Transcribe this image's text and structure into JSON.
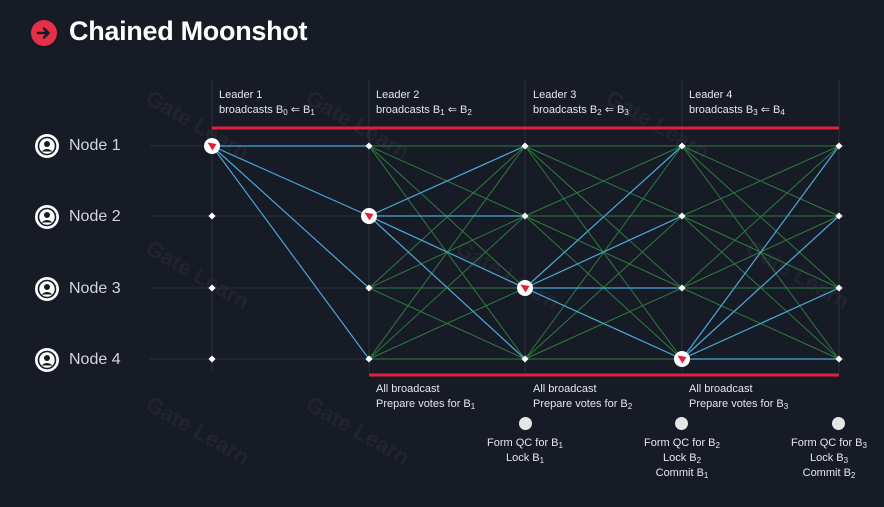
{
  "title": "Chained Moonshot",
  "nodes": [
    {
      "label": "Node 1"
    },
    {
      "label": "Node 2"
    },
    {
      "label": "Node 3"
    },
    {
      "label": "Node 4"
    }
  ],
  "leaders": [
    {
      "line1": "Leader 1",
      "line2_prefix": "broadcasts B",
      "from": "0",
      "arrow": "⇐",
      "to_prefix": "B",
      "to": "1"
    },
    {
      "line1": "Leader 2",
      "line2_prefix": "broadcasts B",
      "from": "1",
      "arrow": "⇐",
      "to_prefix": "B",
      "to": "2"
    },
    {
      "line1": "Leader 3",
      "line2_prefix": "broadcasts  B",
      "from": "2",
      "arrow": "⇐",
      "to_prefix": "B",
      "to": "3"
    },
    {
      "line1": "Leader 4",
      "line2_prefix": "broadcasts  B",
      "from": "3",
      "arrow": "⇐",
      "to_prefix": "B",
      "to": "4"
    }
  ],
  "broadcasts": [
    {
      "line1": "All broadcast",
      "line2_prefix": "Prepare votes for B",
      "sub": "1"
    },
    {
      "line1": "All broadcast",
      "line2_prefix": "Prepare votes for B",
      "sub": "2"
    },
    {
      "line1": "All broadcast",
      "line2_prefix": "Prepare votes for B",
      "sub": "3"
    }
  ],
  "qc_events": [
    {
      "form_prefix": "Form QC for B",
      "form_sub": "1",
      "lock_prefix": "Lock B",
      "lock_sub": "1",
      "commit_prefix": "",
      "commit_sub": ""
    },
    {
      "form_prefix": "Form QC for B",
      "form_sub": "2",
      "lock_prefix": "Lock B",
      "lock_sub": "2",
      "commit_prefix": "Commit B",
      "commit_sub": "1"
    },
    {
      "form_prefix": "Form QC for B",
      "form_sub": "3",
      "lock_prefix": "Lock B",
      "lock_sub": "3",
      "commit_prefix": "Commit B",
      "commit_sub": "2"
    }
  ],
  "watermark": "Gate Learn",
  "colors": {
    "background": "#171b26",
    "accent_red": "#e0213c",
    "proposal_blue": "#4aa6d6",
    "vote_green": "#2f7a3f",
    "grid": "#2a2f3b"
  },
  "icons": [
    "arrow-right-circle-icon",
    "user-avatar-icon",
    "leader-sail-icon"
  ]
}
